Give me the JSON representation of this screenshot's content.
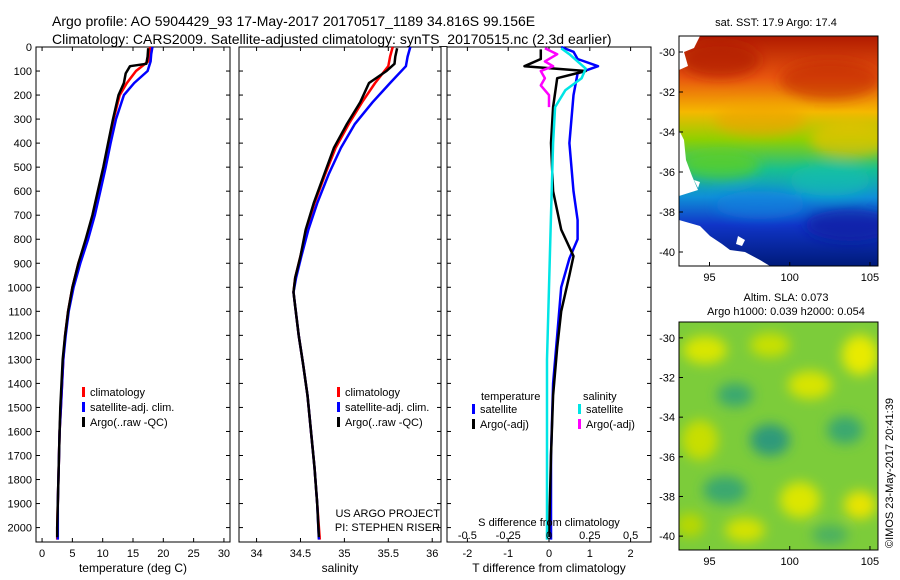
{
  "header": {
    "line1": "Argo profile: AO 5904429_93 17-May-2017 20170517_1189 34.816S 99.156E",
    "line2": "Climatology: CARS2009. Satellite-adjusted climatology: synTS_20170515.nc (2.3d earlier)"
  },
  "colors": {
    "climatology": "#ff0000",
    "satellite": "#0000ff",
    "argo": "#000000",
    "satellite_sal": "#00e5e5",
    "argo_sal": "#ff00ff"
  },
  "chart_data": [
    {
      "type": "line",
      "name": "temperature-profile",
      "xlabel": "temperature (deg C)",
      "xlim": [
        -1,
        31
      ],
      "ylim": [
        2060,
        0
      ],
      "xticks": [
        "0",
        "5",
        "10",
        "15",
        "20",
        "25",
        "30"
      ],
      "yticks": [
        "0",
        "100",
        "200",
        "300",
        "400",
        "500",
        "600",
        "700",
        "800",
        "900",
        "1000",
        "1100",
        "1200",
        "1300",
        "1400",
        "1500",
        "1600",
        "1700",
        "1800",
        "1900",
        "2000"
      ],
      "legend": [
        "climatology",
        "satellite-adj. clim.",
        "Argo(..raw -QC)"
      ],
      "series": [
        {
          "name": "climatology",
          "color": "#ff0000",
          "points": [
            [
              17.8,
              0
            ],
            [
              17.7,
              30
            ],
            [
              17.5,
              60
            ],
            [
              15.5,
              100
            ],
            [
              14,
              150
            ],
            [
              12.8,
              200
            ],
            [
              11.8,
              300
            ],
            [
              11.0,
              400
            ],
            [
              10.2,
              500
            ],
            [
              9.3,
              600
            ],
            [
              8.4,
              700
            ],
            [
              7.3,
              800
            ],
            [
              6.0,
              900
            ],
            [
              5.0,
              1000
            ],
            [
              4.3,
              1100
            ],
            [
              3.8,
              1200
            ],
            [
              3.5,
              1300
            ],
            [
              3.3,
              1400
            ],
            [
              3.1,
              1500
            ],
            [
              2.9,
              1600
            ],
            [
              2.8,
              1700
            ],
            [
              2.7,
              1800
            ],
            [
              2.6,
              1900
            ],
            [
              2.5,
              2000
            ],
            [
              2.5,
              2050
            ]
          ]
        },
        {
          "name": "satellite-adj. clim.",
          "color": "#0000ff",
          "points": [
            [
              18.2,
              0
            ],
            [
              18.0,
              30
            ],
            [
              17.9,
              60
            ],
            [
              17.4,
              100
            ],
            [
              15.2,
              150
            ],
            [
              13.5,
              200
            ],
            [
              12.2,
              300
            ],
            [
              11.3,
              400
            ],
            [
              10.5,
              500
            ],
            [
              9.6,
              600
            ],
            [
              8.7,
              700
            ],
            [
              7.6,
              800
            ],
            [
              6.3,
              900
            ],
            [
              5.2,
              1000
            ],
            [
              4.4,
              1100
            ],
            [
              3.9,
              1200
            ],
            [
              3.5,
              1300
            ],
            [
              3.3,
              1400
            ],
            [
              3.1,
              1500
            ],
            [
              2.9,
              1600
            ],
            [
              2.8,
              1700
            ],
            [
              2.7,
              1800
            ],
            [
              2.6,
              1900
            ],
            [
              2.6,
              2000
            ],
            [
              2.6,
              2050
            ]
          ]
        },
        {
          "name": "Argo(..raw -QC)",
          "color": "#000000",
          "points": [
            [
              17.5,
              5
            ],
            [
              17.4,
              40
            ],
            [
              17.2,
              70
            ],
            [
              14.5,
              80
            ],
            [
              13.8,
              110
            ],
            [
              13.5,
              150
            ],
            [
              12.6,
              200
            ],
            [
              11.7,
              300
            ],
            [
              10.9,
              400
            ],
            [
              10.1,
              500
            ],
            [
              9.2,
              600
            ],
            [
              8.3,
              700
            ],
            [
              7.2,
              800
            ],
            [
              6.0,
              900
            ],
            [
              5.0,
              1000
            ],
            [
              4.3,
              1100
            ],
            [
              3.8,
              1200
            ],
            [
              3.4,
              1300
            ],
            [
              3.2,
              1400
            ],
            [
              3.0,
              1500
            ],
            [
              2.9,
              1600
            ],
            [
              2.8,
              1700
            ],
            [
              2.7,
              1800
            ],
            [
              2.6,
              1900
            ],
            [
              2.5,
              2000
            ],
            [
              2.5,
              2040
            ]
          ]
        }
      ]
    },
    {
      "type": "line",
      "name": "salinity-profile",
      "xlabel": "salinity",
      "xlim": [
        33.8,
        36.1
      ],
      "ylim": [
        2060,
        0
      ],
      "xticks": [
        "34",
        "34.5",
        "35",
        "35.5",
        "36"
      ],
      "legend": [
        "climatology",
        "satellite-adj. clim.",
        "Argo(..raw -QC)"
      ],
      "note1": "US ARGO PROJECT",
      "note2": "PI: STEPHEN RISER",
      "series": [
        {
          "name": "climatology",
          "color": "#ff0000",
          "points": [
            [
              35.55,
              0
            ],
            [
              35.52,
              40
            ],
            [
              35.5,
              80
            ],
            [
              35.35,
              150
            ],
            [
              35.2,
              230
            ],
            [
              35.05,
              320
            ],
            [
              34.9,
              420
            ],
            [
              34.78,
              530
            ],
            [
              34.66,
              650
            ],
            [
              34.57,
              760
            ],
            [
              34.5,
              870
            ],
            [
              34.44,
              960
            ],
            [
              34.42,
              1020
            ],
            [
              34.44,
              1080
            ],
            [
              34.48,
              1200
            ],
            [
              34.53,
              1320
            ],
            [
              34.58,
              1450
            ],
            [
              34.62,
              1600
            ],
            [
              34.66,
              1750
            ],
            [
              34.69,
              1900
            ],
            [
              34.72,
              2050
            ]
          ]
        },
        {
          "name": "satellite-adj. clim.",
          "color": "#0000ff",
          "points": [
            [
              35.75,
              0
            ],
            [
              35.72,
              40
            ],
            [
              35.7,
              80
            ],
            [
              35.52,
              150
            ],
            [
              35.32,
              230
            ],
            [
              35.12,
              320
            ],
            [
              34.96,
              420
            ],
            [
              34.82,
              530
            ],
            [
              34.69,
              650
            ],
            [
              34.59,
              760
            ],
            [
              34.51,
              870
            ],
            [
              34.45,
              960
            ],
            [
              34.42,
              1020
            ],
            [
              34.44,
              1080
            ],
            [
              34.48,
              1200
            ],
            [
              34.53,
              1320
            ],
            [
              34.58,
              1450
            ],
            [
              34.62,
              1600
            ],
            [
              34.66,
              1750
            ],
            [
              34.69,
              1900
            ],
            [
              34.71,
              2050
            ]
          ]
        },
        {
          "name": "Argo(..raw -QC)",
          "color": "#000000",
          "points": [
            [
              35.6,
              5
            ],
            [
              35.58,
              40
            ],
            [
              35.57,
              70
            ],
            [
              35.48,
              100
            ],
            [
              35.28,
              150
            ],
            [
              35.18,
              230
            ],
            [
              35.03,
              320
            ],
            [
              34.88,
              420
            ],
            [
              34.77,
              530
            ],
            [
              34.65,
              650
            ],
            [
              34.56,
              760
            ],
            [
              34.5,
              870
            ],
            [
              34.44,
              960
            ],
            [
              34.42,
              1020
            ],
            [
              34.44,
              1080
            ],
            [
              34.48,
              1200
            ],
            [
              34.53,
              1320
            ],
            [
              34.58,
              1450
            ],
            [
              34.62,
              1600
            ],
            [
              34.66,
              1750
            ],
            [
              34.69,
              1900
            ],
            [
              34.71,
              2040
            ]
          ]
        }
      ]
    },
    {
      "type": "line",
      "name": "difference-profile",
      "xlabel": "T difference from climatology",
      "x2label": "S difference from climatology",
      "xlim": [
        -2.5,
        2.5
      ],
      "ylim": [
        2060,
        0
      ],
      "xticks": [
        "-2",
        "-1",
        "0",
        "1",
        "2"
      ],
      "x2ticks": [
        "-0.5",
        "-0.25",
        "0",
        "0.25",
        "0.5"
      ],
      "legend_title_t": "temperature",
      "legend_title_s": "salinity",
      "legend": [
        "satellite",
        "Argo(-adj)",
        "satellite",
        "Argo(-adj)"
      ],
      "series": [
        {
          "name": "T satellite",
          "color": "#0000ff",
          "points": [
            [
              0.3,
              0
            ],
            [
              0.6,
              20
            ],
            [
              0.7,
              50
            ],
            [
              1.2,
              80
            ],
            [
              0.7,
              110
            ],
            [
              0.6,
              200
            ],
            [
              0.5,
              400
            ],
            [
              0.6,
              600
            ],
            [
              0.7,
              720
            ],
            [
              0.7,
              800
            ],
            [
              0.5,
              880
            ],
            [
              0.3,
              1000
            ],
            [
              0.2,
              1200
            ],
            [
              0.1,
              1400
            ],
            [
              0.05,
              1700
            ],
            [
              0.05,
              2050
            ]
          ]
        },
        {
          "name": "T Argo(-adj)",
          "color": "#000000",
          "points": [
            [
              -0.2,
              10
            ],
            [
              -0.2,
              50
            ],
            [
              -0.6,
              80
            ],
            [
              0.9,
              100
            ],
            [
              0.2,
              130
            ],
            [
              0.1,
              250
            ],
            [
              0.05,
              400
            ],
            [
              0.1,
              600
            ],
            [
              0.3,
              760
            ],
            [
              0.6,
              870
            ],
            [
              0.5,
              950
            ],
            [
              0.3,
              1100
            ],
            [
              0.2,
              1250
            ],
            [
              0.1,
              1450
            ],
            [
              0.05,
              1700
            ],
            [
              0.0,
              2040
            ]
          ]
        },
        {
          "name": "S satellite",
          "color": "#00e5e5",
          "points": [
            [
              0.3,
              5
            ],
            [
              0.5,
              30
            ],
            [
              0.7,
              60
            ],
            [
              0.9,
              90
            ],
            [
              0.8,
              130
            ],
            [
              0.4,
              180
            ],
            [
              0.15,
              250
            ],
            [
              0.1,
              400
            ],
            [
              0.05,
              700
            ],
            [
              0.0,
              1000
            ],
            [
              -0.05,
              1300
            ],
            [
              -0.05,
              1600
            ],
            [
              -0.05,
              2050
            ]
          ]
        },
        {
          "name": "S Argo(-adj)",
          "color": "#ff00ff",
          "points": [
            [
              -0.1,
              5
            ],
            [
              0.2,
              30
            ],
            [
              -0.1,
              60
            ],
            [
              0.1,
              80
            ],
            [
              -0.2,
              100
            ],
            [
              -0.1,
              130
            ],
            [
              -0.2,
              160
            ],
            [
              0.0,
              200
            ],
            [
              0.0,
              250
            ]
          ]
        }
      ]
    }
  ],
  "sst_map": {
    "title": "sat. SST: 17.9 Argo: 17.4",
    "xticks": [
      "95",
      "100",
      "105"
    ],
    "yticks": [
      "-30",
      "-32",
      "-34",
      "-36",
      "-38",
      "-40"
    ]
  },
  "sla_map": {
    "title1": "Altim. SLA: 0.073",
    "title2": "Argo h1000: 0.039 h2000: 0.054",
    "xticks": [
      "95",
      "100",
      "105"
    ],
    "yticks": [
      "-30",
      "-32",
      "-34",
      "-36",
      "-38",
      "-40"
    ]
  },
  "footer": {
    "credit": "©IMOS 23-May-2017 20:41:39"
  }
}
